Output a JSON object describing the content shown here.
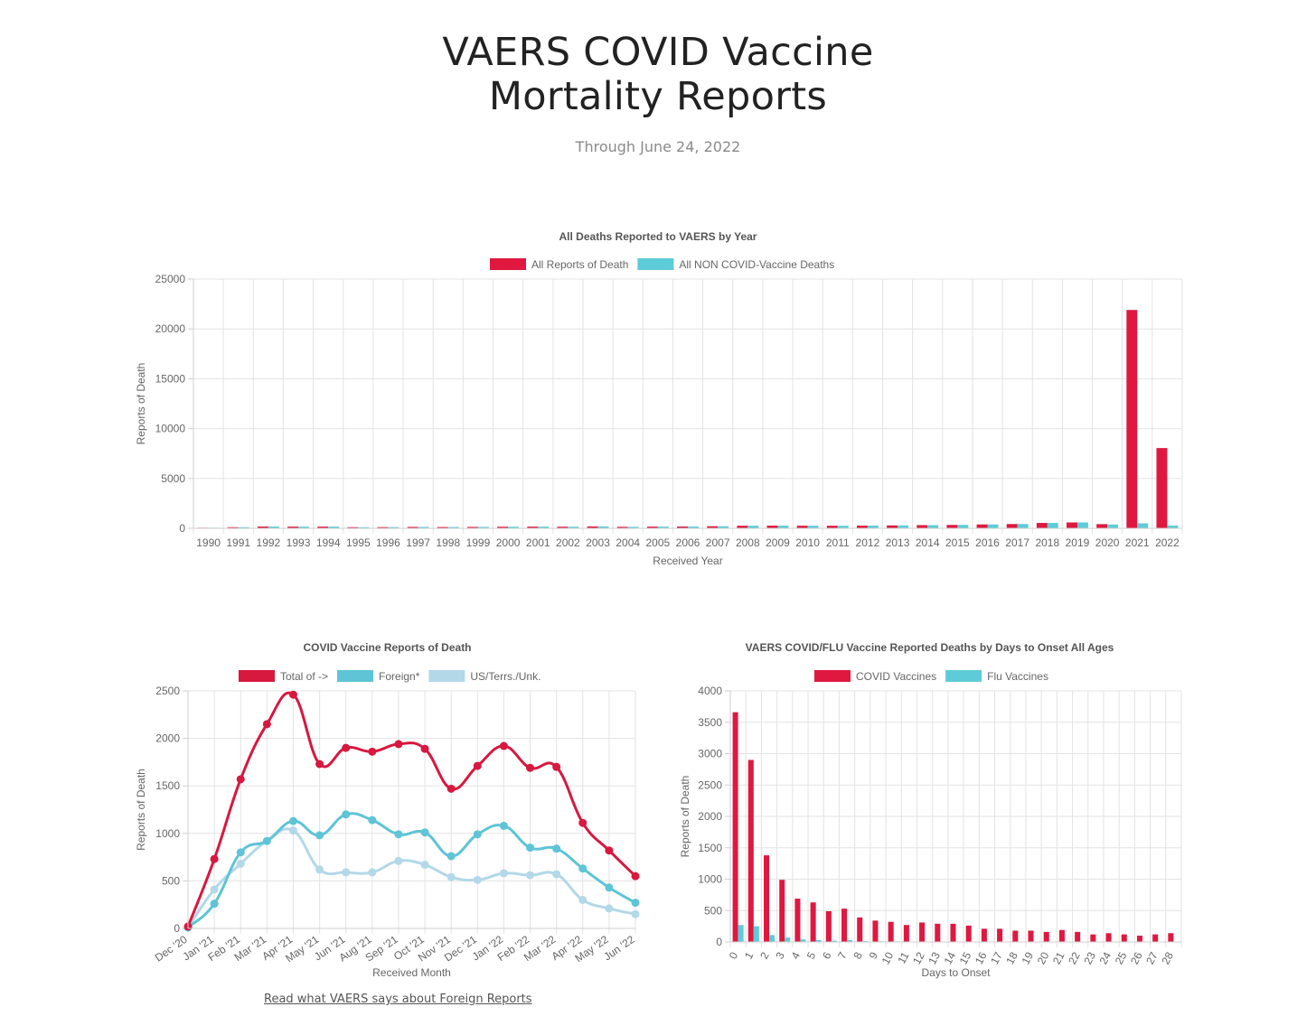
{
  "page": {
    "title_line1": "VAERS COVID Vaccine",
    "title_line2": "Mortality Reports",
    "subtitle": "Through June 24, 2022",
    "footer_link": "Read what VAERS says about Foreign Reports"
  },
  "chart_data": [
    {
      "id": "yearly",
      "type": "bar",
      "title": "All Deaths Reported to VAERS by Year",
      "xlabel": "Received Year",
      "ylabel": "Reports of Death",
      "ylim": [
        0,
        25000
      ],
      "yticks": [
        0,
        5000,
        10000,
        15000,
        20000,
        25000
      ],
      "grid": true,
      "legend": "top-center",
      "categories": [
        "1990",
        "1991",
        "1992",
        "1993",
        "1994",
        "1995",
        "1996",
        "1997",
        "1998",
        "1999",
        "2000",
        "2001",
        "2002",
        "2003",
        "2004",
        "2005",
        "2006",
        "2007",
        "2008",
        "2009",
        "2010",
        "2011",
        "2012",
        "2013",
        "2014",
        "2015",
        "2016",
        "2017",
        "2018",
        "2019",
        "2020",
        "2021",
        "2022"
      ],
      "series": [
        {
          "name": "All Reports of Death",
          "color": "#e0183f",
          "values": [
            60,
            110,
            180,
            170,
            170,
            110,
            120,
            140,
            130,
            140,
            160,
            170,
            160,
            190,
            150,
            170,
            180,
            210,
            260,
            270,
            260,
            260,
            270,
            290,
            320,
            340,
            390,
            430,
            540,
            590,
            420,
            21900,
            8050
          ]
        },
        {
          "name": "All NON COVID-Vaccine Deaths",
          "color": "#5ecbd8",
          "values": [
            60,
            110,
            180,
            170,
            170,
            110,
            120,
            140,
            130,
            140,
            160,
            170,
            160,
            190,
            150,
            170,
            180,
            210,
            260,
            270,
            260,
            260,
            270,
            290,
            320,
            340,
            390,
            430,
            540,
            590,
            380,
            500,
            280
          ]
        }
      ]
    },
    {
      "id": "monthly",
      "type": "line",
      "title": "COVID Vaccine Reports of Death",
      "xlabel": "Received Month",
      "ylabel": "Reports of Death",
      "ylim": [
        0,
        2500
      ],
      "yticks": [
        0,
        500,
        1000,
        1500,
        2000,
        2500
      ],
      "grid": true,
      "legend": "top-center",
      "categories": [
        "Dec '20",
        "Jan '21",
        "Feb '21",
        "Mar '21",
        "Apr '21",
        "May '21",
        "Jun '21",
        "Aug '21",
        "Sep '21",
        "Oct '21",
        "Nov '21",
        "Dec '21",
        "Jan '22",
        "Feb '22",
        "Mar '22",
        "Apr '22",
        "May '22",
        "Jun '22"
      ],
      "series": [
        {
          "name": "Total of ->",
          "color": "#d7183f",
          "values": [
            20,
            730,
            1570,
            2150,
            2460,
            1730,
            1900,
            1860,
            1940,
            1890,
            1470,
            1710,
            1920,
            1690,
            1700,
            1110,
            820,
            550
          ]
        },
        {
          "name": "Foreign*",
          "color": "#5ec4d6",
          "values": [
            10,
            260,
            800,
            920,
            1130,
            980,
            1200,
            1140,
            990,
            1010,
            760,
            990,
            1080,
            850,
            840,
            630,
            430,
            270
          ]
        },
        {
          "name": "US/Terrs./Unk.",
          "color": "#b3d8e8",
          "values": [
            10,
            410,
            680,
            920,
            1030,
            620,
            590,
            590,
            710,
            670,
            540,
            510,
            580,
            560,
            570,
            300,
            210,
            150
          ]
        }
      ]
    },
    {
      "id": "onset",
      "type": "bar",
      "title": "VAERS COVID/FLU Vaccine Reported Deaths by Days to Onset All Ages",
      "xlabel": "Days to Onset",
      "ylabel": "Reports of Death",
      "ylim": [
        0,
        4000
      ],
      "yticks": [
        0,
        500,
        1000,
        1500,
        2000,
        2500,
        3000,
        3500,
        4000
      ],
      "grid": true,
      "legend": "top-center",
      "categories": [
        "0",
        "1",
        "2",
        "3",
        "4",
        "5",
        "6",
        "7",
        "8",
        "9",
        "10",
        "11",
        "12",
        "13",
        "14",
        "15",
        "16",
        "17",
        "18",
        "19",
        "20",
        "21",
        "22",
        "23",
        "24",
        "25",
        "26",
        "27",
        "28"
      ],
      "series": [
        {
          "name": "COVID Vaccines",
          "color": "#e0183f",
          "values": [
            3660,
            2900,
            1380,
            990,
            690,
            630,
            490,
            530,
            390,
            340,
            320,
            270,
            310,
            290,
            290,
            260,
            210,
            210,
            180,
            180,
            160,
            190,
            160,
            120,
            140,
            120,
            100,
            120,
            140
          ]
        },
        {
          "name": "Flu Vaccines",
          "color": "#5ecbd8",
          "values": [
            270,
            250,
            110,
            70,
            40,
            30,
            20,
            30,
            15,
            10,
            10,
            5,
            5,
            5,
            5,
            5,
            5,
            5,
            5,
            5,
            5,
            5,
            5,
            5,
            5,
            5,
            5,
            5,
            5
          ]
        }
      ]
    }
  ]
}
